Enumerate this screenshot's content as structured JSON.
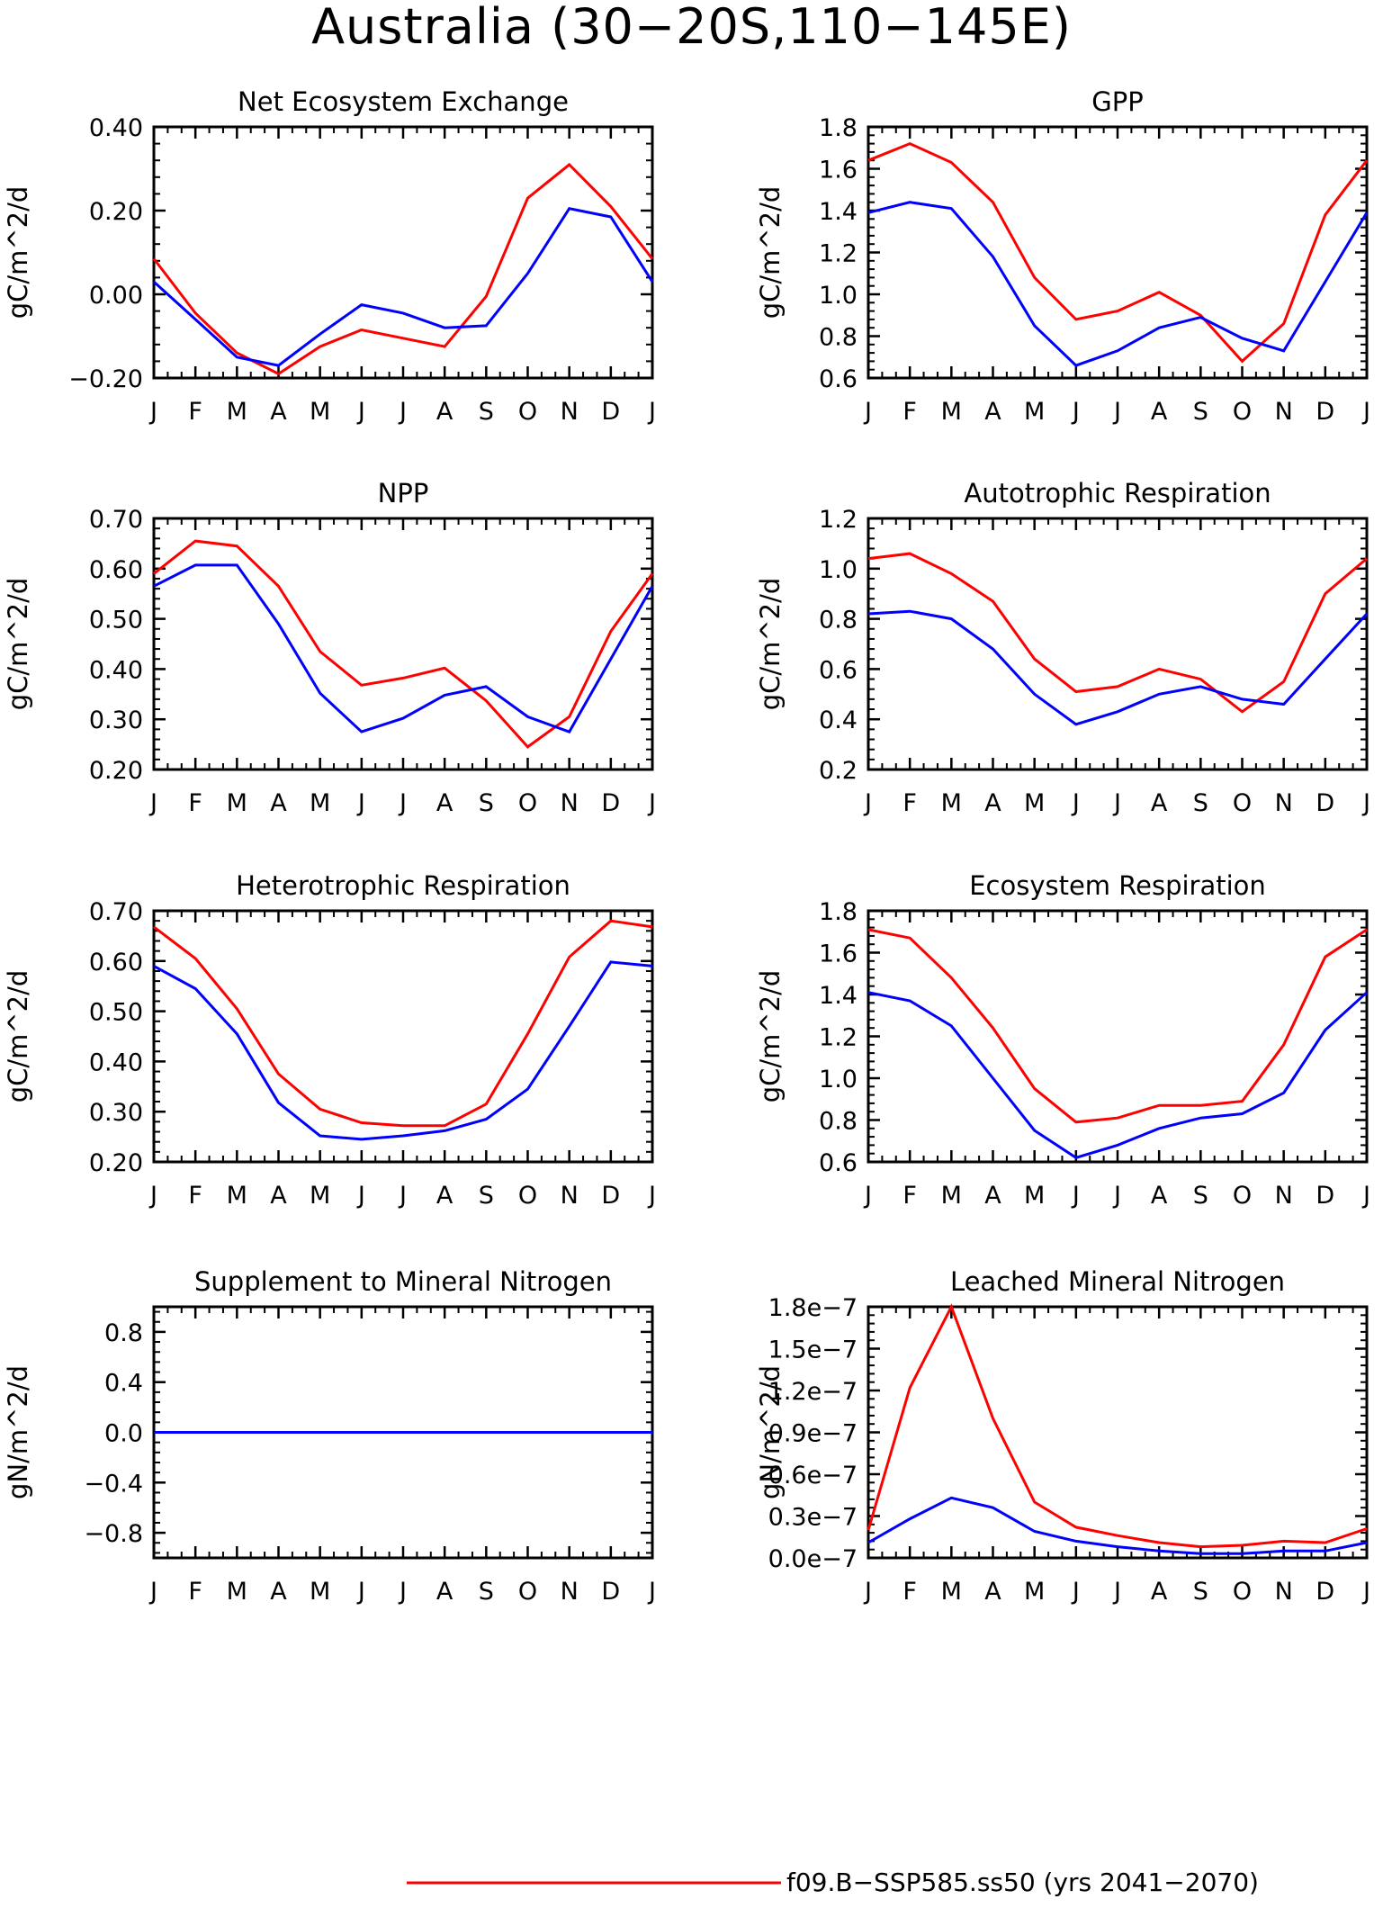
{
  "title": "Australia (30−20S,110−145E)",
  "months": [
    "J",
    "F",
    "M",
    "A",
    "M",
    "J",
    "J",
    "A",
    "S",
    "O",
    "N",
    "D",
    "J"
  ],
  "colors": {
    "series_red": "#ff0000",
    "series_blue": "#0000ff",
    "axis": "#000000"
  },
  "legend": {
    "entries": [
      {
        "label": "f09.B−SSP585.ss50 (yrs 2041−2070)",
        "color": "#ff0000"
      }
    ]
  },
  "chart_data": [
    {
      "type": "line",
      "title": "Net Ecosystem Exchange",
      "ylabel": "gC/m^2/d",
      "ylim": [
        -0.2,
        0.4
      ],
      "yticks": [
        -0.2,
        0.0,
        0.2,
        0.4
      ],
      "ytick_labels": [
        "−0.20",
        "0.00",
        "0.20",
        "0.40"
      ],
      "categories": [
        "J",
        "F",
        "M",
        "A",
        "M",
        "J",
        "J",
        "A",
        "S",
        "O",
        "N",
        "D",
        "J"
      ],
      "series": [
        {
          "color": "#ff0000",
          "values": [
            0.085,
            -0.045,
            -0.14,
            -0.19,
            -0.125,
            -0.085,
            -0.105,
            -0.125,
            -0.005,
            0.23,
            0.31,
            0.21,
            0.085
          ]
        },
        {
          "color": "#0000ff",
          "values": [
            0.03,
            -0.06,
            -0.15,
            -0.17,
            -0.095,
            -0.025,
            -0.045,
            -0.08,
            -0.075,
            0.05,
            0.205,
            0.185,
            0.03
          ]
        }
      ]
    },
    {
      "type": "line",
      "title": "GPP",
      "ylabel": "gC/m^2/d",
      "ylim": [
        0.6,
        1.8
      ],
      "yticks": [
        0.6,
        0.8,
        1.0,
        1.2,
        1.4,
        1.6,
        1.8
      ],
      "ytick_labels": [
        "0.6",
        "0.8",
        "1.0",
        "1.2",
        "1.4",
        "1.6",
        "1.8"
      ],
      "categories": [
        "J",
        "F",
        "M",
        "A",
        "M",
        "J",
        "J",
        "A",
        "S",
        "O",
        "N",
        "D",
        "J"
      ],
      "series": [
        {
          "color": "#ff0000",
          "values": [
            1.64,
            1.72,
            1.63,
            1.44,
            1.08,
            0.88,
            0.92,
            1.01,
            0.9,
            0.68,
            0.86,
            1.38,
            1.64
          ]
        },
        {
          "color": "#0000ff",
          "values": [
            1.39,
            1.44,
            1.41,
            1.18,
            0.85,
            0.66,
            0.73,
            0.84,
            0.89,
            0.79,
            0.73,
            1.06,
            1.39
          ]
        }
      ]
    },
    {
      "type": "line",
      "title": "NPP",
      "ylabel": "gC/m^2/d",
      "ylim": [
        0.2,
        0.7
      ],
      "yticks": [
        0.2,
        0.3,
        0.4,
        0.5,
        0.6,
        0.7
      ],
      "ytick_labels": [
        "0.20",
        "0.30",
        "0.40",
        "0.50",
        "0.60",
        "0.70"
      ],
      "categories": [
        "J",
        "F",
        "M",
        "A",
        "M",
        "J",
        "J",
        "A",
        "S",
        "O",
        "N",
        "D",
        "J"
      ],
      "series": [
        {
          "color": "#ff0000",
          "values": [
            0.59,
            0.655,
            0.645,
            0.565,
            0.435,
            0.368,
            0.382,
            0.402,
            0.337,
            0.245,
            0.305,
            0.475,
            0.59
          ]
        },
        {
          "color": "#0000ff",
          "values": [
            0.565,
            0.607,
            0.607,
            0.49,
            0.352,
            0.275,
            0.302,
            0.348,
            0.365,
            0.305,
            0.275,
            0.42,
            0.565
          ]
        }
      ]
    },
    {
      "type": "line",
      "title": "Autotrophic Respiration",
      "ylabel": "gC/m^2/d",
      "ylim": [
        0.2,
        1.2
      ],
      "yticks": [
        0.2,
        0.4,
        0.6,
        0.8,
        1.0,
        1.2
      ],
      "ytick_labels": [
        "0.2",
        "0.4",
        "0.6",
        "0.8",
        "1.0",
        "1.2"
      ],
      "categories": [
        "J",
        "F",
        "M",
        "A",
        "M",
        "J",
        "J",
        "A",
        "S",
        "O",
        "N",
        "D",
        "J"
      ],
      "series": [
        {
          "color": "#ff0000",
          "values": [
            1.04,
            1.06,
            0.98,
            0.87,
            0.64,
            0.51,
            0.53,
            0.6,
            0.56,
            0.43,
            0.55,
            0.9,
            1.04
          ]
        },
        {
          "color": "#0000ff",
          "values": [
            0.82,
            0.83,
            0.8,
            0.68,
            0.5,
            0.38,
            0.43,
            0.5,
            0.53,
            0.48,
            0.46,
            0.64,
            0.82
          ]
        }
      ]
    },
    {
      "type": "line",
      "title": "Heterotrophic Respiration",
      "ylabel": "gC/m^2/d",
      "ylim": [
        0.2,
        0.7
      ],
      "yticks": [
        0.2,
        0.3,
        0.4,
        0.5,
        0.6,
        0.7
      ],
      "ytick_labels": [
        "0.20",
        "0.30",
        "0.40",
        "0.50",
        "0.60",
        "0.70"
      ],
      "categories": [
        "J",
        "F",
        "M",
        "A",
        "M",
        "J",
        "J",
        "A",
        "S",
        "O",
        "N",
        "D",
        "J"
      ],
      "series": [
        {
          "color": "#ff0000",
          "values": [
            0.668,
            0.605,
            0.505,
            0.375,
            0.305,
            0.278,
            0.272,
            0.272,
            0.315,
            0.455,
            0.608,
            0.68,
            0.668
          ]
        },
        {
          "color": "#0000ff",
          "values": [
            0.59,
            0.545,
            0.455,
            0.318,
            0.252,
            0.245,
            0.252,
            0.262,
            0.285,
            0.345,
            0.47,
            0.598,
            0.59
          ]
        }
      ]
    },
    {
      "type": "line",
      "title": "Ecosystem Respiration",
      "ylabel": "gC/m^2/d",
      "ylim": [
        0.6,
        1.8
      ],
      "yticks": [
        0.6,
        0.8,
        1.0,
        1.2,
        1.4,
        1.6,
        1.8
      ],
      "ytick_labels": [
        "0.6",
        "0.8",
        "1.0",
        "1.2",
        "1.4",
        "1.6",
        "1.8"
      ],
      "categories": [
        "J",
        "F",
        "M",
        "A",
        "M",
        "J",
        "J",
        "A",
        "S",
        "O",
        "N",
        "D",
        "J"
      ],
      "series": [
        {
          "color": "#ff0000",
          "values": [
            1.71,
            1.67,
            1.48,
            1.24,
            0.95,
            0.79,
            0.81,
            0.87,
            0.87,
            0.89,
            1.16,
            1.58,
            1.71
          ]
        },
        {
          "color": "#0000ff",
          "values": [
            1.41,
            1.37,
            1.25,
            1.0,
            0.75,
            0.62,
            0.68,
            0.76,
            0.81,
            0.83,
            0.93,
            1.23,
            1.41
          ]
        }
      ]
    },
    {
      "type": "line",
      "title": "Supplement to Mineral Nitrogen",
      "ylabel": "gN/m^2/d",
      "ylim": [
        -1.0,
        1.0
      ],
      "yticks": [
        -0.8,
        -0.4,
        0.0,
        0.4,
        0.8
      ],
      "ytick_labels": [
        "−0.8",
        "−0.4",
        "0.0",
        "0.4",
        "0.8"
      ],
      "categories": [
        "J",
        "F",
        "M",
        "A",
        "M",
        "J",
        "J",
        "A",
        "S",
        "O",
        "N",
        "D",
        "J"
      ],
      "series": [
        {
          "color": "#ff0000",
          "values": [
            0,
            0,
            0,
            0,
            0,
            0,
            0,
            0,
            0,
            0,
            0,
            0,
            0
          ]
        },
        {
          "color": "#0000ff",
          "values": [
            0,
            0,
            0,
            0,
            0,
            0,
            0,
            0,
            0,
            0,
            0,
            0,
            0
          ]
        }
      ]
    },
    {
      "type": "line",
      "title": "Leached Mineral Nitrogen",
      "ylabel": "gN/m^2/d",
      "ylim": [
        0,
        1.8e-07
      ],
      "yticks": [
        0,
        3e-08,
        6e-08,
        9e-08,
        1.2e-07,
        1.5e-07,
        1.8e-07
      ],
      "ytick_labels": [
        "0.0e−7",
        "0.3e−7",
        "0.6e−7",
        "0.9e−7",
        "1.2e−7",
        "1.5e−7",
        "1.8e−7"
      ],
      "categories": [
        "J",
        "F",
        "M",
        "A",
        "M",
        "J",
        "J",
        "A",
        "S",
        "O",
        "N",
        "D",
        "J"
      ],
      "series": [
        {
          "color": "#ff0000",
          "values": [
            2e-08,
            1.22e-07,
            1.8e-07,
            1e-07,
            4e-08,
            2.2e-08,
            1.6e-08,
            1.1e-08,
            8e-09,
            9e-09,
            1.2e-08,
            1.1e-08,
            2.1e-08
          ]
        },
        {
          "color": "#0000ff",
          "values": [
            1.1e-08,
            2.8e-08,
            4.3e-08,
            3.6e-08,
            1.9e-08,
            1.2e-08,
            8e-09,
            5e-09,
            3e-09,
            3e-09,
            5e-09,
            5e-09,
            1.1e-08
          ]
        }
      ]
    }
  ]
}
